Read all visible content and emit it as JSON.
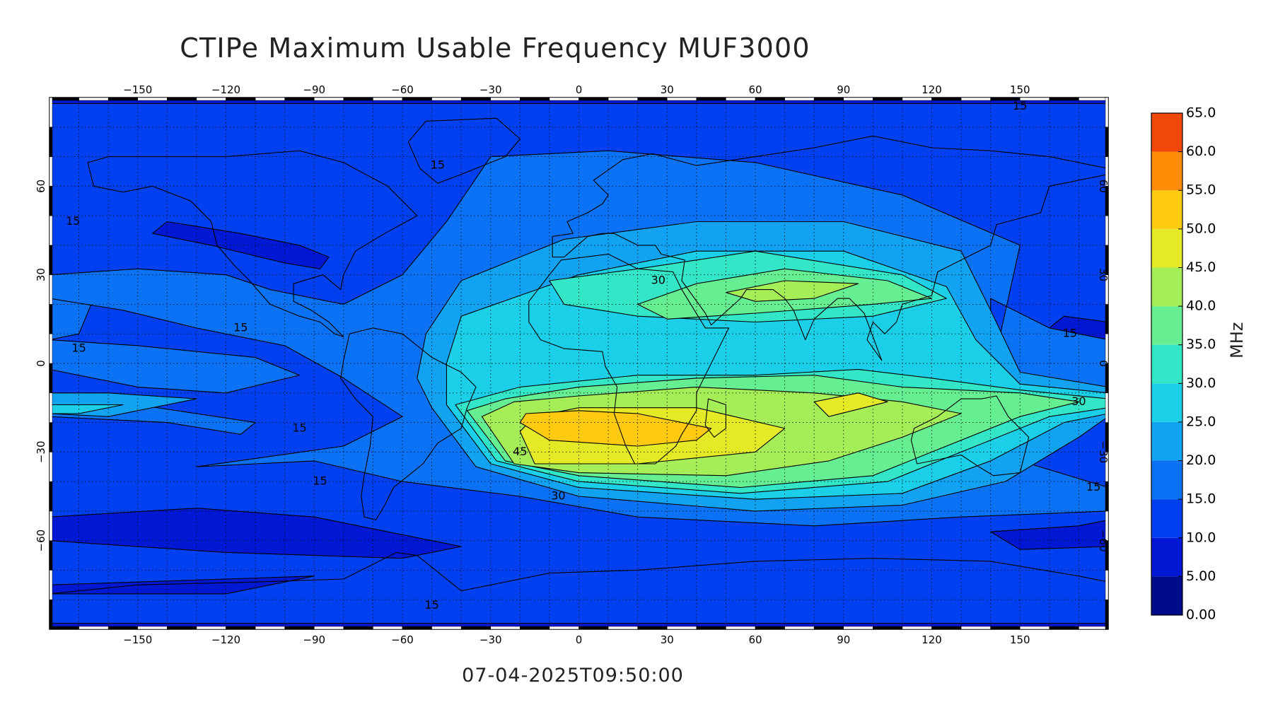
{
  "title": "CTIPe Maximum Usable Frequency MUF3000",
  "timestamp": "07-04-2025T09:50:00",
  "lon_ticks": [
    -150,
    -120,
    -90,
    -60,
    -30,
    0,
    30,
    60,
    90,
    120,
    150
  ],
  "lat_ticks": [
    -60,
    -30,
    0,
    30,
    60
  ],
  "lon_range": [
    -180,
    180
  ],
  "lat_range": [
    -90,
    90
  ],
  "colorbar": {
    "unit": "MHz",
    "ticks": [
      "0.00",
      "5.00",
      "10.0",
      "15.0",
      "20.0",
      "25.0",
      "30.0",
      "35.0",
      "40.0",
      "45.0",
      "50.0",
      "55.0",
      "60.0",
      "65.0"
    ],
    "range": [
      0,
      65
    ],
    "colors": [
      "#000b8a",
      "#0018d4",
      "#0040f0",
      "#0b72f6",
      "#12a2f2",
      "#1ccfe8",
      "#34e6c8",
      "#66ef92",
      "#a6ee58",
      "#e4ea26",
      "#ffca10",
      "#ff8c06",
      "#f2480a"
    ]
  },
  "contour_labels": [
    {
      "text": "15",
      "lon": -172,
      "lat": 48
    },
    {
      "text": "15",
      "lon": -115,
      "lat": 12
    },
    {
      "text": "15",
      "lon": -170,
      "lat": 5
    },
    {
      "text": "15",
      "lon": -95,
      "lat": -22
    },
    {
      "text": "15",
      "lon": -88,
      "lat": -40
    },
    {
      "text": "15",
      "lon": -50,
      "lat": -82
    },
    {
      "text": "15",
      "lon": -48,
      "lat": 67
    },
    {
      "text": "15",
      "lon": 150,
      "lat": 87
    },
    {
      "text": "15",
      "lon": 167,
      "lat": 10
    },
    {
      "text": "15",
      "lon": 175,
      "lat": -42
    },
    {
      "text": "30",
      "lon": 27,
      "lat": 28
    },
    {
      "text": "30",
      "lon": -7,
      "lat": -45
    },
    {
      "text": "30",
      "lon": 170,
      "lat": -13
    },
    {
      "text": "45",
      "lon": -20,
      "lat": -30
    }
  ]
}
